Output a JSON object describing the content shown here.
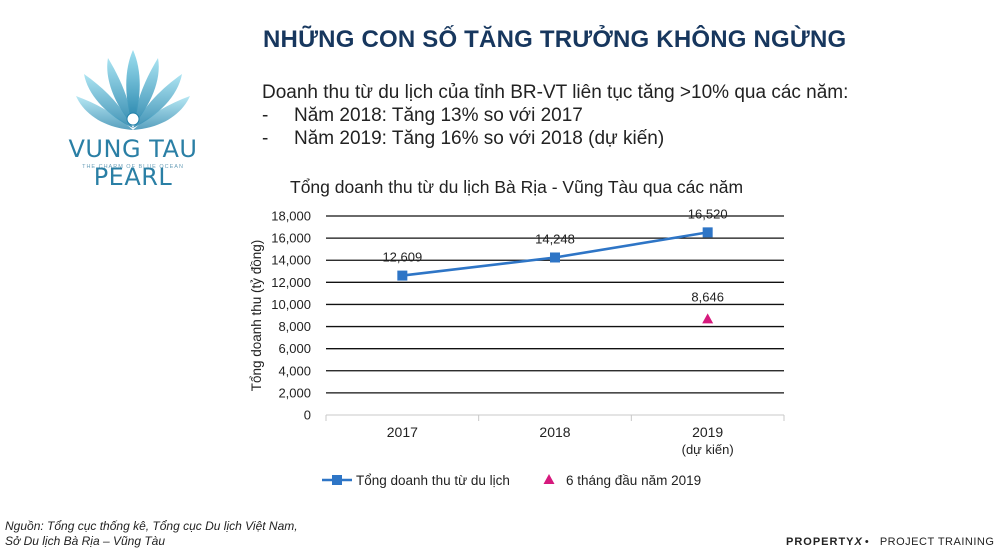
{
  "logo": {
    "name": "VUNG TAU PEARL",
    "tagline": "THE CHARM OF BLUE OCEAN"
  },
  "header": {
    "title": "NHỮNG CON SỐ TĂNG TRƯỞNG KHÔNG NGỪNG"
  },
  "intro": {
    "lead": "Doanh thu từ du lịch của tỉnh BR-VT liên tục tăng >10% qua các năm:",
    "bullets": [
      {
        "marker": "-",
        "text": "Năm 2018: Tăng 13% so với 2017"
      },
      {
        "marker": "-",
        "text": "Năm 2019:  Tăng 16% so với 2018 (dự kiến)"
      }
    ]
  },
  "chart_data": {
    "type": "line",
    "title": "Tổng doanh thu từ du lịch Bà Rịa - Vũng Tàu qua các năm",
    "ylabel": "Tổng doanh thu (tỷ đồng)",
    "xlabel": "",
    "ylim": [
      0,
      18000
    ],
    "yticks": [
      0,
      2000,
      4000,
      6000,
      8000,
      10000,
      12000,
      14000,
      16000,
      18000
    ],
    "ytick_labels": [
      "0",
      "2,000",
      "4,000",
      "6,000",
      "8,000",
      "10,000",
      "12,000",
      "14,000",
      "16,000",
      "18,000"
    ],
    "categories": [
      "2017",
      "2018",
      "2019"
    ],
    "category_sublabels": [
      "",
      "",
      "(dự kiến)"
    ],
    "grid": true,
    "legend_position": "bottom",
    "series": [
      {
        "name": "Tổng doanh thu từ du lịch",
        "kind": "line",
        "color": "#2e75c6",
        "values": [
          12609,
          14248,
          16520
        ],
        "labels": [
          "12,609",
          "14,248",
          "16,520"
        ]
      },
      {
        "name": "6 tháng đầu năm 2019",
        "kind": "marker",
        "marker": "triangle",
        "color": "#d6197d",
        "values": [
          null,
          null,
          8646
        ],
        "labels": [
          "",
          "",
          "8,646"
        ]
      }
    ]
  },
  "source": {
    "line1": "Nguồn: Tổng cục thống kê, Tổng cục Du lịch Việt Nam,",
    "line2": "Sở Du lịch Bà Rịa – Vũng Tàu"
  },
  "footer": {
    "brand": "PROPERTY",
    "brand_mark": "X",
    "separator": "•",
    "label": "PROJECT TRAINING"
  }
}
